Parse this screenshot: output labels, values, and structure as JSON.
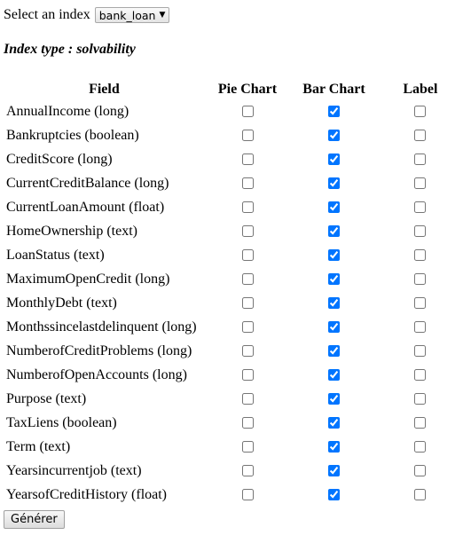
{
  "index_selector": {
    "label": "Select an index",
    "selected": "bank_loan",
    "arrow": "▼"
  },
  "index_type": "Index type : solvability",
  "table": {
    "headers": {
      "field": "Field",
      "pie": "Pie Chart",
      "bar": "Bar Chart",
      "label": "Label"
    },
    "rows": [
      {
        "name": "AnnualIncome (long)",
        "pie": false,
        "bar": true,
        "label": false
      },
      {
        "name": "Bankruptcies (boolean)",
        "pie": false,
        "bar": true,
        "label": false
      },
      {
        "name": "CreditScore (long)",
        "pie": false,
        "bar": true,
        "label": false
      },
      {
        "name": "CurrentCreditBalance (long)",
        "pie": false,
        "bar": true,
        "label": false
      },
      {
        "name": "CurrentLoanAmount (float)",
        "pie": false,
        "bar": true,
        "label": false
      },
      {
        "name": "HomeOwnership (text)",
        "pie": false,
        "bar": true,
        "label": false
      },
      {
        "name": "LoanStatus (text)",
        "pie": false,
        "bar": true,
        "label": false
      },
      {
        "name": "MaximumOpenCredit (long)",
        "pie": false,
        "bar": true,
        "label": false
      },
      {
        "name": "MonthlyDebt (text)",
        "pie": false,
        "bar": true,
        "label": false
      },
      {
        "name": "Monthssincelastdelinquent (long)",
        "pie": false,
        "bar": true,
        "label": false
      },
      {
        "name": "NumberofCreditProblems (long)",
        "pie": false,
        "bar": true,
        "label": false
      },
      {
        "name": "NumberofOpenAccounts (long)",
        "pie": false,
        "bar": true,
        "label": false
      },
      {
        "name": "Purpose (text)",
        "pie": false,
        "bar": true,
        "label": false
      },
      {
        "name": "TaxLiens (boolean)",
        "pie": false,
        "bar": true,
        "label": false
      },
      {
        "name": "Term (text)",
        "pie": false,
        "bar": true,
        "label": false
      },
      {
        "name": "Yearsincurrentjob (text)",
        "pie": false,
        "bar": true,
        "label": false
      },
      {
        "name": "YearsofCreditHistory (float)",
        "pie": false,
        "bar": true,
        "label": false
      }
    ]
  },
  "submit_label": "Générer"
}
